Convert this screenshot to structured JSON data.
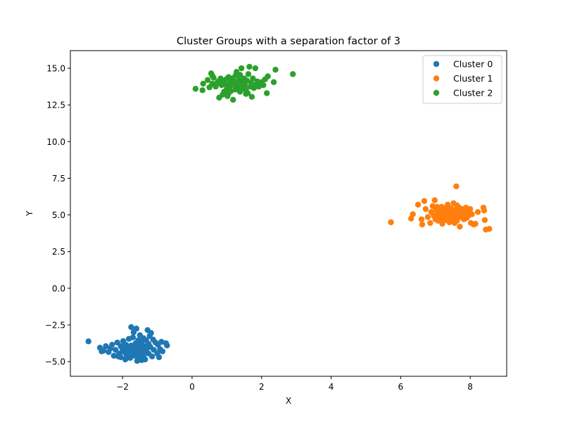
{
  "chart_data": {
    "type": "scatter",
    "title": "Cluster Groups with a separation factor of 3",
    "xlabel": "X",
    "ylabel": "Y",
    "xlim": [
      -3.5,
      9.05
    ],
    "ylim": [
      -6.0,
      16.2
    ],
    "xticks": [
      -2,
      0,
      2,
      4,
      6,
      8
    ],
    "xtick_labels": [
      "−2",
      "0",
      "2",
      "4",
      "6",
      "8"
    ],
    "yticks": [
      -5.0,
      -2.5,
      0.0,
      2.5,
      5.0,
      7.5,
      10.0,
      12.5,
      15.0
    ],
    "ytick_labels": [
      "−5.0",
      "−2.5",
      "0.0",
      "2.5",
      "5.0",
      "7.5",
      "10.0",
      "12.5",
      "15.0"
    ],
    "grid": false,
    "legend_position": "upper right",
    "series": [
      {
        "name": "Cluster 0",
        "color": "#1f77b4",
        "points": [
          [
            -2.98,
            -3.62
          ],
          [
            -2.65,
            -4.05
          ],
          [
            -2.55,
            -4.25
          ],
          [
            -2.48,
            -3.95
          ],
          [
            -2.4,
            -4.35
          ],
          [
            -2.35,
            -4.1
          ],
          [
            -2.3,
            -3.85
          ],
          [
            -2.25,
            -4.6
          ],
          [
            -2.2,
            -4.2
          ],
          [
            -2.15,
            -3.7
          ],
          [
            -2.1,
            -4.45
          ],
          [
            -2.05,
            -3.95
          ],
          [
            -2.05,
            -4.7
          ],
          [
            -2.0,
            -4.15
          ],
          [
            -1.98,
            -3.6
          ],
          [
            -1.95,
            -4.35
          ],
          [
            -1.9,
            -3.85
          ],
          [
            -1.88,
            -4.55
          ],
          [
            -1.85,
            -4.05
          ],
          [
            -1.82,
            -3.45
          ],
          [
            -1.8,
            -4.25
          ],
          [
            -1.78,
            -4.75
          ],
          [
            -1.75,
            -2.65
          ],
          [
            -1.75,
            -3.9
          ],
          [
            -1.72,
            -4.45
          ],
          [
            -1.7,
            -3.35
          ],
          [
            -1.68,
            -4.1
          ],
          [
            -1.65,
            -4.6
          ],
          [
            -1.62,
            -3.75
          ],
          [
            -1.6,
            -2.75
          ],
          [
            -1.6,
            -4.3
          ],
          [
            -1.58,
            -4.95
          ],
          [
            -1.55,
            -3.55
          ],
          [
            -1.55,
            -4.05
          ],
          [
            -1.52,
            -4.7
          ],
          [
            -1.5,
            -3.2
          ],
          [
            -1.5,
            -4.4
          ],
          [
            -1.48,
            -3.85
          ],
          [
            -1.45,
            -4.9
          ],
          [
            -1.45,
            -3.65
          ],
          [
            -1.42,
            -4.15
          ],
          [
            -1.4,
            -3.4
          ],
          [
            -1.4,
            -4.6
          ],
          [
            -1.38,
            -3.95
          ],
          [
            -1.35,
            -4.3
          ],
          [
            -1.32,
            -3.55
          ],
          [
            -1.3,
            -4.1
          ],
          [
            -1.28,
            -2.85
          ],
          [
            -1.25,
            -3.8
          ],
          [
            -1.25,
            -4.45
          ],
          [
            -1.22,
            -3.25
          ],
          [
            -1.2,
            -4.0
          ],
          [
            -1.18,
            -3.05
          ],
          [
            -1.15,
            -4.65
          ],
          [
            -1.12,
            -3.5
          ],
          [
            -1.1,
            -4.2
          ],
          [
            -1.05,
            -3.7
          ],
          [
            -1.0,
            -4.45
          ],
          [
            -0.98,
            -3.85
          ],
          [
            -0.95,
            -4.7
          ],
          [
            -0.92,
            -4.15
          ],
          [
            -0.88,
            -3.65
          ],
          [
            -0.85,
            -4.3
          ],
          [
            -0.75,
            -3.75
          ],
          [
            -0.72,
            -3.9
          ],
          [
            -2.6,
            -4.3
          ],
          [
            -2.12,
            -4.65
          ],
          [
            -1.92,
            -4.85
          ],
          [
            -1.68,
            -3.0
          ],
          [
            -1.35,
            -4.85
          ]
        ]
      },
      {
        "name": "Cluster 1",
        "color": "#ff7f0e",
        "points": [
          [
            5.72,
            4.5
          ],
          [
            6.3,
            4.75
          ],
          [
            6.35,
            5.05
          ],
          [
            6.5,
            5.7
          ],
          [
            6.6,
            4.7
          ],
          [
            6.62,
            4.35
          ],
          [
            6.68,
            5.95
          ],
          [
            6.72,
            5.4
          ],
          [
            6.78,
            4.85
          ],
          [
            6.85,
            4.45
          ],
          [
            6.88,
            5.2
          ],
          [
            6.92,
            5.6
          ],
          [
            6.95,
            4.95
          ],
          [
            6.98,
            6.0
          ],
          [
            7.0,
            4.7
          ],
          [
            7.02,
            5.35
          ],
          [
            7.05,
            5.05
          ],
          [
            7.08,
            4.6
          ],
          [
            7.1,
            5.45
          ],
          [
            7.12,
            4.85
          ],
          [
            7.15,
            5.2
          ],
          [
            7.18,
            5.55
          ],
          [
            7.2,
            4.4
          ],
          [
            7.22,
            4.95
          ],
          [
            7.25,
            5.3
          ],
          [
            7.28,
            4.65
          ],
          [
            7.3,
            5.1
          ],
          [
            7.32,
            5.5
          ],
          [
            7.35,
            4.8
          ],
          [
            7.38,
            5.25
          ],
          [
            7.4,
            4.5
          ],
          [
            7.42,
            5.0
          ],
          [
            7.45,
            5.45
          ],
          [
            7.48,
            4.7
          ],
          [
            7.5,
            5.15
          ],
          [
            7.52,
            5.8
          ],
          [
            7.55,
            4.9
          ],
          [
            7.58,
            5.35
          ],
          [
            7.6,
            6.95
          ],
          [
            7.62,
            4.6
          ],
          [
            7.65,
            5.05
          ],
          [
            7.68,
            5.5
          ],
          [
            7.7,
            4.2
          ],
          [
            7.72,
            4.85
          ],
          [
            7.75,
            5.25
          ],
          [
            7.78,
            4.95
          ],
          [
            7.8,
            5.4
          ],
          [
            7.82,
            4.7
          ],
          [
            7.85,
            5.15
          ],
          [
            7.88,
            5.5
          ],
          [
            7.9,
            4.8
          ],
          [
            7.92,
            5.2
          ],
          [
            7.95,
            4.95
          ],
          [
            8.0,
            5.4
          ],
          [
            8.02,
            4.45
          ],
          [
            8.05,
            5.05
          ],
          [
            8.1,
            4.35
          ],
          [
            8.15,
            4.4
          ],
          [
            8.22,
            5.2
          ],
          [
            8.38,
            5.5
          ],
          [
            8.4,
            5.3
          ],
          [
            8.42,
            4.65
          ],
          [
            8.45,
            4.0
          ],
          [
            8.55,
            4.05
          ],
          [
            7.35,
            5.7
          ],
          [
            7.05,
            5.55
          ],
          [
            7.55,
            4.45
          ],
          [
            7.15,
            4.65
          ],
          [
            7.62,
            5.65
          ],
          [
            7.45,
            4.75
          ]
        ]
      },
      {
        "name": "Cluster 2",
        "color": "#2ca02c",
        "points": [
          [
            0.1,
            13.6
          ],
          [
            0.3,
            13.5
          ],
          [
            0.32,
            13.95
          ],
          [
            0.45,
            14.2
          ],
          [
            0.5,
            13.7
          ],
          [
            0.55,
            14.65
          ],
          [
            0.58,
            13.95
          ],
          [
            0.62,
            14.35
          ],
          [
            0.68,
            13.75
          ],
          [
            0.75,
            14.1
          ],
          [
            0.78,
            13.0
          ],
          [
            0.82,
            14.3
          ],
          [
            0.85,
            13.85
          ],
          [
            0.9,
            14.05
          ],
          [
            0.92,
            13.4
          ],
          [
            0.95,
            13.9
          ],
          [
            0.98,
            14.25
          ],
          [
            1.0,
            13.6
          ],
          [
            1.02,
            13.1
          ],
          [
            1.05,
            14.4
          ],
          [
            1.08,
            13.75
          ],
          [
            1.1,
            14.0
          ],
          [
            1.12,
            13.45
          ],
          [
            1.15,
            14.3
          ],
          [
            1.18,
            12.85
          ],
          [
            1.2,
            13.85
          ],
          [
            1.22,
            14.1
          ],
          [
            1.25,
            13.55
          ],
          [
            1.28,
            14.75
          ],
          [
            1.3,
            13.95
          ],
          [
            1.32,
            13.7
          ],
          [
            1.35,
            14.2
          ],
          [
            1.38,
            13.4
          ],
          [
            1.4,
            13.9
          ],
          [
            1.42,
            15.0
          ],
          [
            1.45,
            14.05
          ],
          [
            1.48,
            13.6
          ],
          [
            1.5,
            14.3
          ],
          [
            1.52,
            13.85
          ],
          [
            1.55,
            13.55
          ],
          [
            1.58,
            14.15
          ],
          [
            1.6,
            13.3
          ],
          [
            1.62,
            14.6
          ],
          [
            1.65,
            15.1
          ],
          [
            1.68,
            13.75
          ],
          [
            1.7,
            14.0
          ],
          [
            1.72,
            13.05
          ],
          [
            1.75,
            14.3
          ],
          [
            1.78,
            13.65
          ],
          [
            1.82,
            15.0
          ],
          [
            1.85,
            13.9
          ],
          [
            1.88,
            14.1
          ],
          [
            1.92,
            13.75
          ],
          [
            2.0,
            14.05
          ],
          [
            2.05,
            13.85
          ],
          [
            2.1,
            14.25
          ],
          [
            2.15,
            13.3
          ],
          [
            2.18,
            14.45
          ],
          [
            2.35,
            14.05
          ],
          [
            2.4,
            14.9
          ],
          [
            2.9,
            14.6
          ],
          [
            0.58,
            14.5
          ],
          [
            1.25,
            14.5
          ],
          [
            0.88,
            13.2
          ],
          [
            1.55,
            13.25
          ],
          [
            1.38,
            14.55
          ],
          [
            0.72,
            14.0
          ],
          [
            1.05,
            13.3
          ],
          [
            1.95,
            14.0
          ],
          [
            1.15,
            13.9
          ]
        ]
      }
    ]
  }
}
